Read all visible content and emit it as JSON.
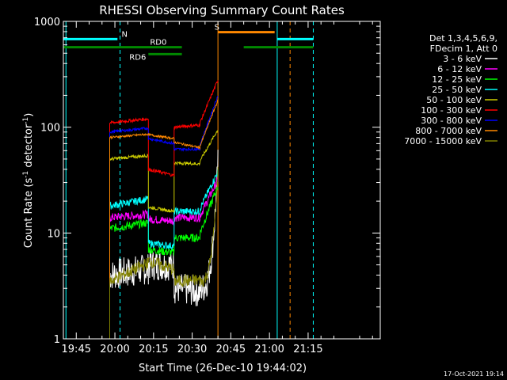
{
  "chart_data": {
    "type": "line",
    "title": "RHESSI Observing Summary Count Rates",
    "xlabel": "Start Time (26-Dec-10 19:44:02)",
    "ylabel_main": "Count Rate (s",
    "ylabel_sup1": "-1",
    "ylabel_mid": " detector",
    "ylabel_sup2": "-1",
    "ylabel_end": ")",
    "date_stamp": "17-Oct-2021 19:14",
    "xlim_min": [
      1180,
      1303
    ],
    "ylim": [
      1,
      1000
    ],
    "y_scale": "log",
    "x_ticks": [
      {
        "t": 1185,
        "label": "19:45"
      },
      {
        "t": 1200,
        "label": "20:00"
      },
      {
        "t": 1215,
        "label": "20:15"
      },
      {
        "t": 1230,
        "label": "20:30"
      },
      {
        "t": 1245,
        "label": "20:45"
      },
      {
        "t": 1260,
        "label": "21:00"
      },
      {
        "t": 1275,
        "label": "21:15"
      }
    ],
    "y_ticks": [
      {
        "v": 1,
        "label": "1"
      },
      {
        "v": 10,
        "label": "10"
      },
      {
        "v": 100,
        "label": "100"
      },
      {
        "v": 1000,
        "label": "1000"
      }
    ],
    "legend_header": [
      "Det 1,3,4,5,6,9,",
      "FDecim 1, Att 0"
    ],
    "series": [
      {
        "name": "3 - 6 keV",
        "color": "#ffffff",
        "segments": [
          [
            [
              1198,
              4
            ],
            [
              1213,
              4.6
            ]
          ],
          [
            [
              1213,
              5
            ],
            [
              1223,
              5
            ]
          ],
          [
            [
              1223,
              3
            ],
            [
              1233,
              2.8
            ]
          ],
          [
            [
              1233,
              3
            ],
            [
              1240,
              45
            ]
          ]
        ],
        "noise": 0.3
      },
      {
        "name": "6 - 12 keV",
        "color": "#ff00ff",
        "segments": [
          [
            [
              1198,
              14
            ],
            [
              1213,
              15
            ]
          ],
          [
            [
              1213,
              13.5
            ],
            [
              1223,
              13
            ]
          ],
          [
            [
              1223,
              14
            ],
            [
              1233,
              14
            ]
          ],
          [
            [
              1233,
              14.5
            ],
            [
              1240,
              32
            ]
          ]
        ],
        "noise": 0.08
      },
      {
        "name": "12 - 25 keV",
        "color": "#00ff00",
        "segments": [
          [
            [
              1198,
              11
            ],
            [
              1213,
              12.5
            ]
          ],
          [
            [
              1213,
              7
            ],
            [
              1223,
              6.5
            ]
          ],
          [
            [
              1223,
              9
            ],
            [
              1233,
              9
            ]
          ],
          [
            [
              1233,
              10
            ],
            [
              1240,
              28
            ]
          ]
        ],
        "noise": 0.08
      },
      {
        "name": "25 - 50 keV",
        "color": "#00ffff",
        "segments": [
          [
            [
              1198,
              18
            ],
            [
              1213,
              21
            ]
          ],
          [
            [
              1213,
              8
            ],
            [
              1223,
              7.5
            ]
          ],
          [
            [
              1223,
              16
            ],
            [
              1233,
              16
            ]
          ],
          [
            [
              1233,
              17
            ],
            [
              1240,
              38
            ]
          ]
        ],
        "noise": 0.07
      },
      {
        "name": "50 - 100 keV",
        "color": "#cccc00",
        "segments": [
          [
            [
              1198,
              50
            ],
            [
              1213,
              54
            ]
          ],
          [
            [
              1213,
              17.5
            ],
            [
              1223,
              16
            ]
          ],
          [
            [
              1223,
              46
            ],
            [
              1233,
              45
            ]
          ],
          [
            [
              1233,
              48
            ],
            [
              1240,
              95
            ]
          ]
        ],
        "noise": 0.03
      },
      {
        "name": "100 - 300 keV",
        "color": "#ff0000",
        "segments": [
          [
            [
              1198,
              110
            ],
            [
              1213,
              120
            ]
          ],
          [
            [
              1213,
              40
            ],
            [
              1223,
              35
            ]
          ],
          [
            [
              1223,
              100
            ],
            [
              1233,
              105
            ]
          ],
          [
            [
              1233,
              110
            ],
            [
              1240,
              280
            ]
          ]
        ],
        "noise": 0.03
      },
      {
        "name": "300 - 800 keV",
        "color": "#0000ff",
        "segments": [
          [
            [
              1198,
              90
            ],
            [
              1213,
              98
            ]
          ],
          [
            [
              1213,
              78
            ],
            [
              1223,
              70
            ]
          ],
          [
            [
              1223,
              62
            ],
            [
              1233,
              62
            ]
          ],
          [
            [
              1233,
              68
            ],
            [
              1240,
              200
            ]
          ]
        ],
        "noise": 0.025
      },
      {
        "name": "800 - 7000 keV",
        "color": "#ff8800",
        "segments": [
          [
            [
              1198,
              80
            ],
            [
              1213,
              86
            ]
          ],
          [
            [
              1213,
              85
            ],
            [
              1223,
              78
            ]
          ],
          [
            [
              1223,
              72
            ],
            [
              1233,
              64
            ]
          ],
          [
            [
              1233,
              66
            ],
            [
              1240,
              180
            ]
          ]
        ],
        "noise": 0.02
      },
      {
        "name": "7000 - 15000 keV",
        "color": "#808000",
        "segments": [
          [
            [
              1198,
              3.5
            ],
            [
              1213,
              5.2
            ]
          ],
          [
            [
              1213,
              5.5
            ],
            [
              1223,
              4.5
            ]
          ],
          [
            [
              1223,
              3.5
            ],
            [
              1233,
              3.6
            ]
          ],
          [
            [
              1233,
              3.5
            ],
            [
              1240,
              38
            ]
          ]
        ],
        "noise": 0.12
      }
    ],
    "bars": [
      {
        "color": "#00ffff",
        "level": 680,
        "ranges": [
          [
            1180,
            1201
          ],
          [
            1263,
            1277
          ]
        ]
      },
      {
        "color": "#008800",
        "level": 570,
        "ranges": [
          [
            1180,
            1226
          ],
          [
            1250,
            1277
          ]
        ]
      },
      {
        "color": "#008800",
        "level": 490,
        "ranges": [
          [
            1213,
            1226
          ]
        ]
      },
      {
        "color": "#ff8800",
        "level": 790,
        "ranges": [
          [
            1240,
            1262
          ]
        ]
      }
    ],
    "bar_labels": [
      {
        "text": "N",
        "t": 1202,
        "v": 680,
        "color": "#00ffff"
      },
      {
        "text": "RD0",
        "t": 1213,
        "v": 570,
        "color": "#00cc00"
      },
      {
        "text": "RD6",
        "t": 1205,
        "v": 490,
        "color": "#00cc00"
      },
      {
        "text": "S",
        "t": 1238,
        "v": 790,
        "color": "#ff8800"
      }
    ],
    "vlines": [
      {
        "t": 1181,
        "color": "#00ffff",
        "dash": false
      },
      {
        "t": 1202,
        "color": "#00ffff",
        "dash": true
      },
      {
        "t": 1240,
        "color": "#ff8800",
        "dash": false
      },
      {
        "t": 1263,
        "color": "#00ffff",
        "dash": false
      },
      {
        "t": 1268,
        "color": "#ff8800",
        "dash": true
      },
      {
        "t": 1277,
        "color": "#00ffff",
        "dash": true
      }
    ]
  }
}
